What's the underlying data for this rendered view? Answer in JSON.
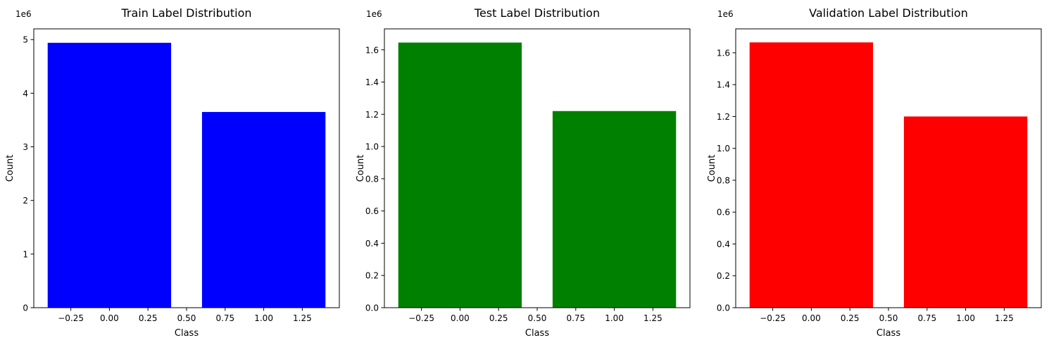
{
  "chart_data": [
    {
      "type": "bar",
      "title": "Train Label Distribution",
      "xlabel": "Class",
      "ylabel": "Count",
      "y_offset_label": "1e6",
      "x": [
        0,
        1
      ],
      "values": [
        4940000,
        3650000
      ],
      "color": "#0000ff",
      "bar_width": 0.8,
      "xlim": [
        -0.49,
        1.49
      ],
      "ylim": [
        0,
        5200000
      ],
      "xticks": [
        -0.25,
        0.0,
        0.25,
        0.5,
        0.75,
        1.0,
        1.25
      ],
      "xtick_labels": [
        "−0.25",
        "0.00",
        "0.25",
        "0.50",
        "0.75",
        "1.00",
        "1.25"
      ],
      "yticks": [
        0,
        1000000,
        2000000,
        3000000,
        4000000,
        5000000
      ],
      "ytick_labels": [
        "0",
        "1",
        "2",
        "3",
        "4",
        "5"
      ],
      "grid": false
    },
    {
      "type": "bar",
      "title": "Test Label Distribution",
      "xlabel": "Class",
      "ylabel": "Count",
      "y_offset_label": "1e6",
      "x": [
        0,
        1
      ],
      "values": [
        1645000,
        1220000
      ],
      "color": "#008000",
      "bar_width": 0.8,
      "xlim": [
        -0.49,
        1.49
      ],
      "ylim": [
        0,
        1730000
      ],
      "xticks": [
        -0.25,
        0.0,
        0.25,
        0.5,
        0.75,
        1.0,
        1.25
      ],
      "xtick_labels": [
        "−0.25",
        "0.00",
        "0.25",
        "0.50",
        "0.75",
        "1.00",
        "1.25"
      ],
      "yticks": [
        0,
        200000,
        400000,
        600000,
        800000,
        1000000,
        1200000,
        1400000,
        1600000
      ],
      "ytick_labels": [
        "0.0",
        "0.2",
        "0.4",
        "0.6",
        "0.8",
        "1.0",
        "1.2",
        "1.4",
        "1.6"
      ],
      "grid": false
    },
    {
      "type": "bar",
      "title": "Validation Label Distribution",
      "xlabel": "Class",
      "ylabel": "Count",
      "y_offset_label": "1e6",
      "x": [
        0,
        1
      ],
      "values": [
        1665000,
        1200000
      ],
      "color": "#ff0000",
      "bar_width": 0.8,
      "xlim": [
        -0.49,
        1.49
      ],
      "ylim": [
        0,
        1750000
      ],
      "xticks": [
        -0.25,
        0.0,
        0.25,
        0.5,
        0.75,
        1.0,
        1.25
      ],
      "xtick_labels": [
        "−0.25",
        "0.00",
        "0.25",
        "0.50",
        "0.75",
        "1.00",
        "1.25"
      ],
      "yticks": [
        0,
        200000,
        400000,
        600000,
        800000,
        1000000,
        1200000,
        1400000,
        1600000
      ],
      "ytick_labels": [
        "0.0",
        "0.2",
        "0.4",
        "0.6",
        "0.8",
        "1.0",
        "1.2",
        "1.4",
        "1.6"
      ],
      "grid": false
    }
  ]
}
